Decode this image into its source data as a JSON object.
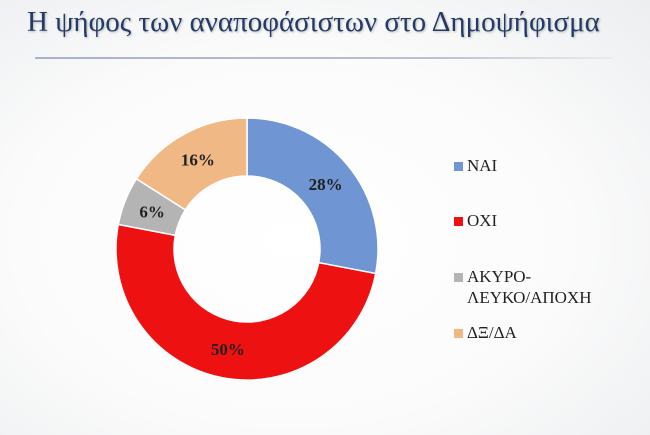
{
  "chart_data": {
    "type": "pie",
    "variant": "donut",
    "title": "Η ψήφος των αναποφάσιστων στο Δημοψήφισμα",
    "categories": [
      "ΝΑΙ",
      "ΟΧΙ",
      "ΑΚΥΡΟ-ΛΕΥΚΟ/ΑΠΟΧΗ",
      "ΔΞ/ΔΑ"
    ],
    "legend_lines": [
      [
        "ΝΑΙ"
      ],
      [
        "ΟΧΙ"
      ],
      [
        "ΑΚΥΡΟ-",
        "ΛΕΥΚΟ/ΑΠΟΧΗ"
      ],
      [
        "ΔΞ/ΔΑ"
      ]
    ],
    "values": [
      28,
      50,
      6,
      16
    ],
    "data_labels": [
      "28%",
      "50%",
      "6%",
      "16%"
    ],
    "colors": [
      "#6f95d2",
      "#ee1111",
      "#b4b4b4",
      "#f0b885"
    ],
    "legend_position": "right",
    "start_angle_deg": 0,
    "direction": "clockwise"
  }
}
